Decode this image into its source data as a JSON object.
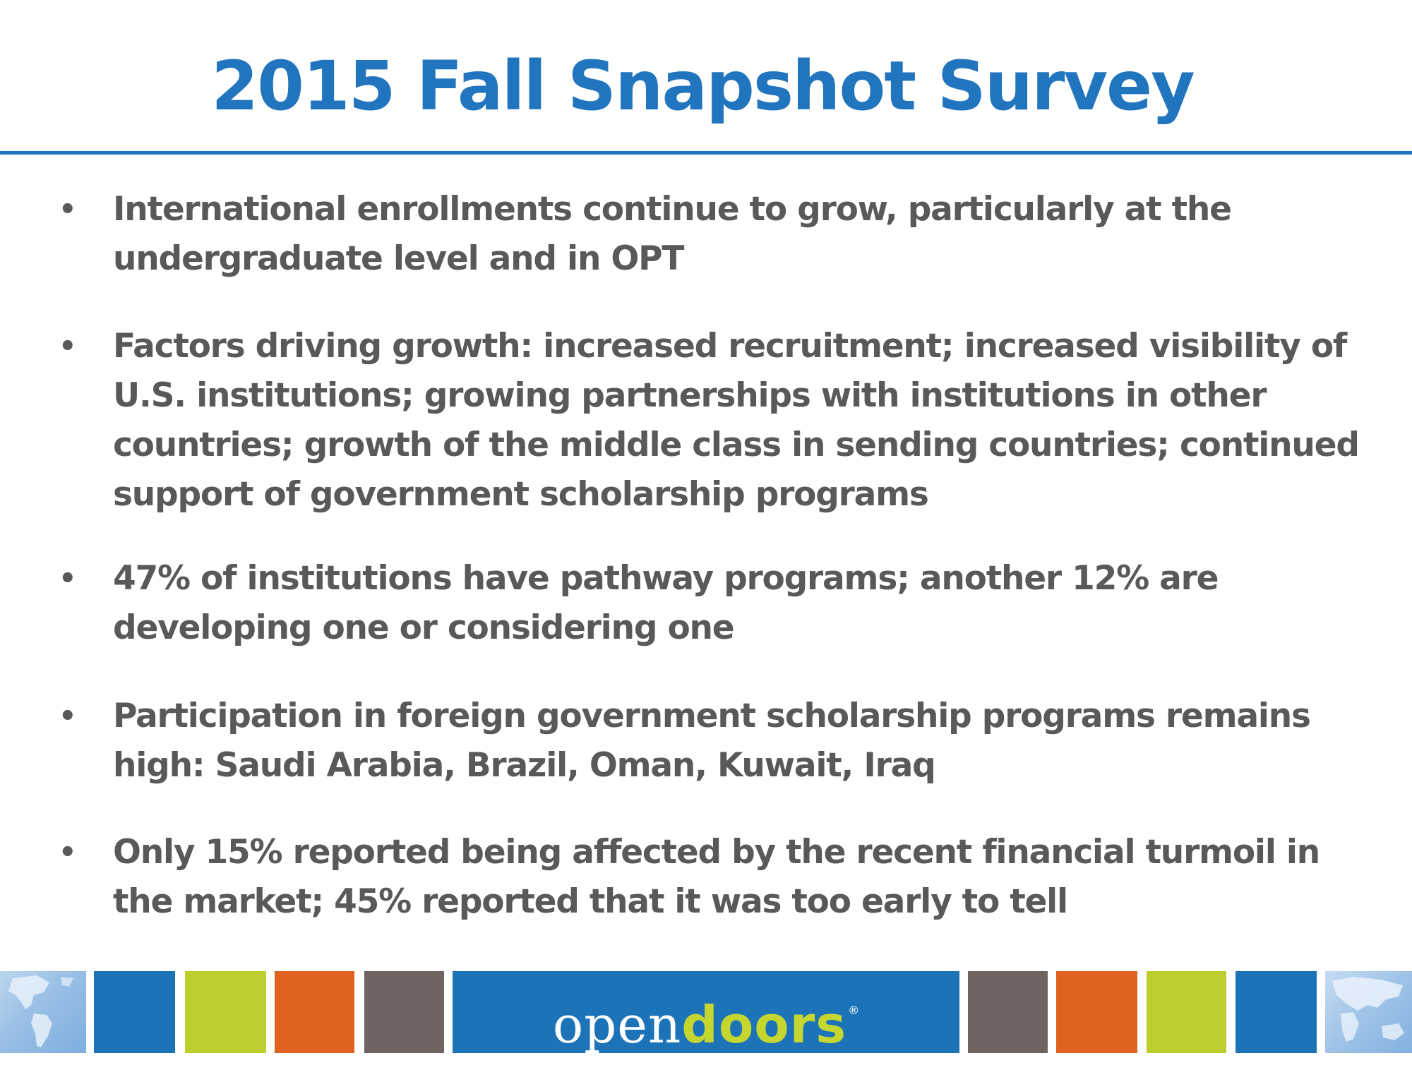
{
  "slide": {
    "title": "2015 Fall Snapshot Survey"
  },
  "bullets": {
    "marker": "•",
    "items": [
      {
        "text": "International enrollments continue to grow, particularly at the undergraduate level and in OPT"
      },
      {
        "text": "Factors driving growth:  increased recruitment; increased visibility of U.S. institutions; growing partnerships with institutions in other countries; growth of the middle class in sending countries; continued support of government scholarship programs"
      },
      {
        "text": "47% of institutions have pathway programs; another 12% are developing one or considering one"
      },
      {
        "text": "Participation in foreign government scholarship programs remains high: Saudi Arabia, Brazil, Oman, Kuwait, Iraq"
      },
      {
        "text": "Only 15% reported being affected by the recent financial turmoil in the market; 45% reported that it was too early to tell"
      }
    ]
  },
  "footer": {
    "logo_open": "open",
    "logo_doors": "doors",
    "logo_registered": "®",
    "colors": {
      "blue": "#1c73b8",
      "green": "#bccf2e",
      "orange": "#e0621f",
      "gray": "#706462",
      "doors_green": "#c5d631",
      "title_blue": "#2175bf"
    },
    "decorations": [
      "world-map-americas-icon",
      "world-map-asia-icon"
    ]
  }
}
